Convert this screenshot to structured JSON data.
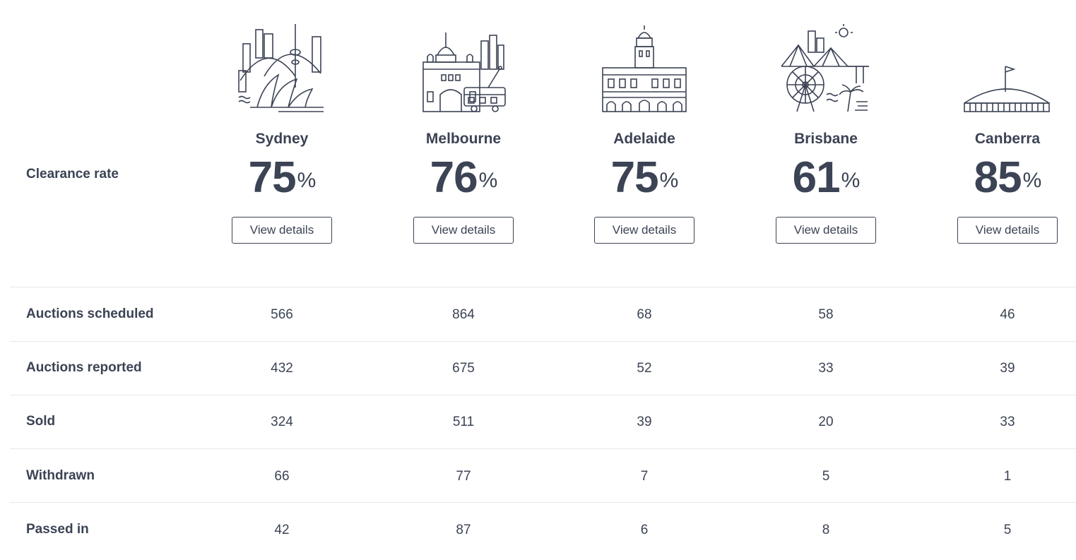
{
  "header_label": "Clearance rate",
  "button_label": "View details",
  "percent_symbol": "%",
  "cities": [
    {
      "name": "Sydney",
      "rate": "75",
      "icon": "sydney-skyline-icon"
    },
    {
      "name": "Melbourne",
      "rate": "76",
      "icon": "melbourne-skyline-icon"
    },
    {
      "name": "Adelaide",
      "rate": "75",
      "icon": "adelaide-skyline-icon"
    },
    {
      "name": "Brisbane",
      "rate": "61",
      "icon": "brisbane-skyline-icon"
    },
    {
      "name": "Canberra",
      "rate": "85",
      "icon": "canberra-skyline-icon"
    }
  ],
  "rows": [
    {
      "label": "Auctions scheduled",
      "values": [
        "566",
        "864",
        "68",
        "58",
        "46"
      ]
    },
    {
      "label": "Auctions reported",
      "values": [
        "432",
        "675",
        "52",
        "33",
        "39"
      ]
    },
    {
      "label": "Sold",
      "values": [
        "324",
        "511",
        "39",
        "20",
        "33"
      ]
    },
    {
      "label": "Withdrawn",
      "values": [
        "66",
        "77",
        "7",
        "5",
        "1"
      ]
    },
    {
      "label": "Passed in",
      "values": [
        "42",
        "87",
        "6",
        "8",
        "5"
      ]
    }
  ]
}
